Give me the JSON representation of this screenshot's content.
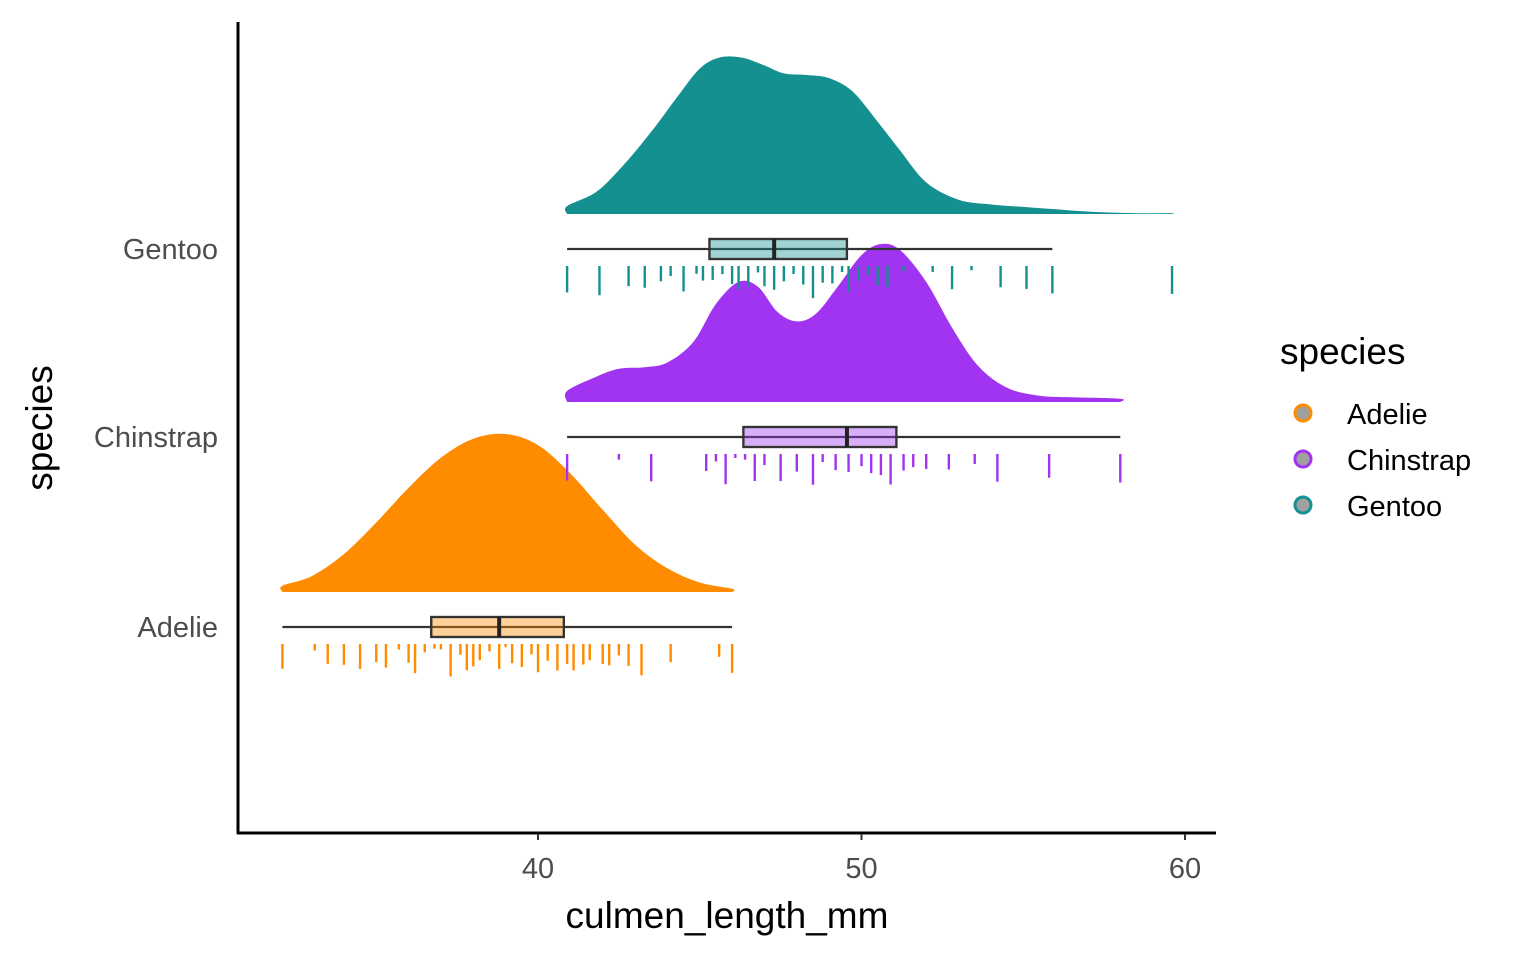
{
  "chart_data": {
    "type": "raincloud",
    "xlabel": "culmen_length_mm",
    "ylabel": "species",
    "xlim": [
      31,
      61
    ],
    "x_ticks": [
      40,
      50,
      60
    ],
    "x_tick_labels": [
      "40",
      "50",
      "60"
    ],
    "grid": false,
    "legend": {
      "title": "species",
      "placement": "right",
      "items": [
        "Adelie",
        "Chinstrap",
        "Gentoo"
      ]
    },
    "colors": {
      "Adelie": "#ff8c00",
      "Chinstrap": "#a034f0",
      "Gentoo": "#159090"
    },
    "series": [
      {
        "name": "Adelie",
        "color": "#ff8c00",
        "box": {
          "min": 32.1,
          "q1": 36.7,
          "median": 38.8,
          "q3": 40.8,
          "max": 46.0
        },
        "density": [
          [
            32.1,
            0.04
          ],
          [
            33,
            0.1
          ],
          [
            34,
            0.24
          ],
          [
            35,
            0.44
          ],
          [
            36,
            0.66
          ],
          [
            37,
            0.85
          ],
          [
            38,
            0.97
          ],
          [
            39,
            1.0
          ],
          [
            40,
            0.93
          ],
          [
            41,
            0.75
          ],
          [
            42,
            0.52
          ],
          [
            43,
            0.3
          ],
          [
            44,
            0.15
          ],
          [
            45,
            0.06
          ],
          [
            46,
            0.02
          ]
        ],
        "rug": [
          32.1,
          33.1,
          33.5,
          34,
          34.5,
          35,
          35.3,
          35.7,
          36,
          36.2,
          36.5,
          36.8,
          37,
          37.3,
          37.6,
          37.8,
          38,
          38.2,
          38.5,
          38.8,
          39,
          39.2,
          39.5,
          39.8,
          40,
          40.3,
          40.6,
          40.9,
          41.1,
          41.4,
          41.6,
          42,
          42.2,
          42.5,
          42.8,
          43.2,
          44.1,
          45.6,
          46
        ]
      },
      {
        "name": "Chinstrap",
        "color": "#a034f0",
        "box": {
          "min": 40.9,
          "q1": 46.35,
          "median": 49.55,
          "q3": 51.08,
          "max": 58.0
        },
        "density": [
          [
            40.9,
            0.07
          ],
          [
            41.8,
            0.16
          ],
          [
            42.5,
            0.21
          ],
          [
            43.3,
            0.22
          ],
          [
            44,
            0.25
          ],
          [
            44.8,
            0.38
          ],
          [
            45.5,
            0.62
          ],
          [
            46.2,
            0.76
          ],
          [
            46.8,
            0.73
          ],
          [
            47.4,
            0.57
          ],
          [
            48,
            0.51
          ],
          [
            48.6,
            0.56
          ],
          [
            49.3,
            0.74
          ],
          [
            50,
            0.93
          ],
          [
            50.6,
            1.0
          ],
          [
            51.2,
            0.96
          ],
          [
            52,
            0.76
          ],
          [
            52.8,
            0.47
          ],
          [
            53.6,
            0.23
          ],
          [
            54.5,
            0.09
          ],
          [
            55.5,
            0.04
          ],
          [
            56.5,
            0.03
          ],
          [
            58,
            0.02
          ]
        ],
        "rug": [
          40.9,
          42.5,
          43.5,
          45.2,
          45.5,
          45.8,
          46.1,
          46.4,
          46.7,
          47,
          47.5,
          48,
          48.5,
          48.8,
          49.2,
          49.6,
          50,
          50.3,
          50.6,
          50.9,
          51.3,
          51.6,
          52,
          52.7,
          53.5,
          54.2,
          55.8,
          58
        ]
      },
      {
        "name": "Gentoo",
        "color": "#159090",
        "box": {
          "min": 40.9,
          "q1": 45.3,
          "median": 47.3,
          "q3": 49.55,
          "max": 55.9
        },
        "density": [
          [
            40.9,
            0.05
          ],
          [
            41.8,
            0.14
          ],
          [
            42.6,
            0.3
          ],
          [
            43.5,
            0.52
          ],
          [
            44.3,
            0.74
          ],
          [
            45,
            0.92
          ],
          [
            45.6,
            0.99
          ],
          [
            46.3,
            0.99
          ],
          [
            47,
            0.94
          ],
          [
            47.6,
            0.89
          ],
          [
            48.3,
            0.88
          ],
          [
            49,
            0.86
          ],
          [
            49.7,
            0.78
          ],
          [
            50.4,
            0.61
          ],
          [
            51.2,
            0.4
          ],
          [
            52,
            0.2
          ],
          [
            53,
            0.09
          ],
          [
            54,
            0.06
          ],
          [
            55,
            0.045
          ],
          [
            56,
            0.03
          ],
          [
            57,
            0.015
          ],
          [
            58.5,
            0.005
          ],
          [
            59.6,
            0.005
          ]
        ],
        "rug": [
          40.9,
          41.9,
          42.8,
          43.3,
          43.8,
          44.1,
          44.5,
          44.9,
          45.1,
          45.4,
          45.7,
          46,
          46.2,
          46.5,
          46.8,
          47,
          47.3,
          47.6,
          47.9,
          48.2,
          48.5,
          48.8,
          49.1,
          49.4,
          49.6,
          49.9,
          50.2,
          50.5,
          50.8,
          51.3,
          52.2,
          52.8,
          53.4,
          54.3,
          55.1,
          55.9,
          59.6
        ]
      }
    ]
  }
}
